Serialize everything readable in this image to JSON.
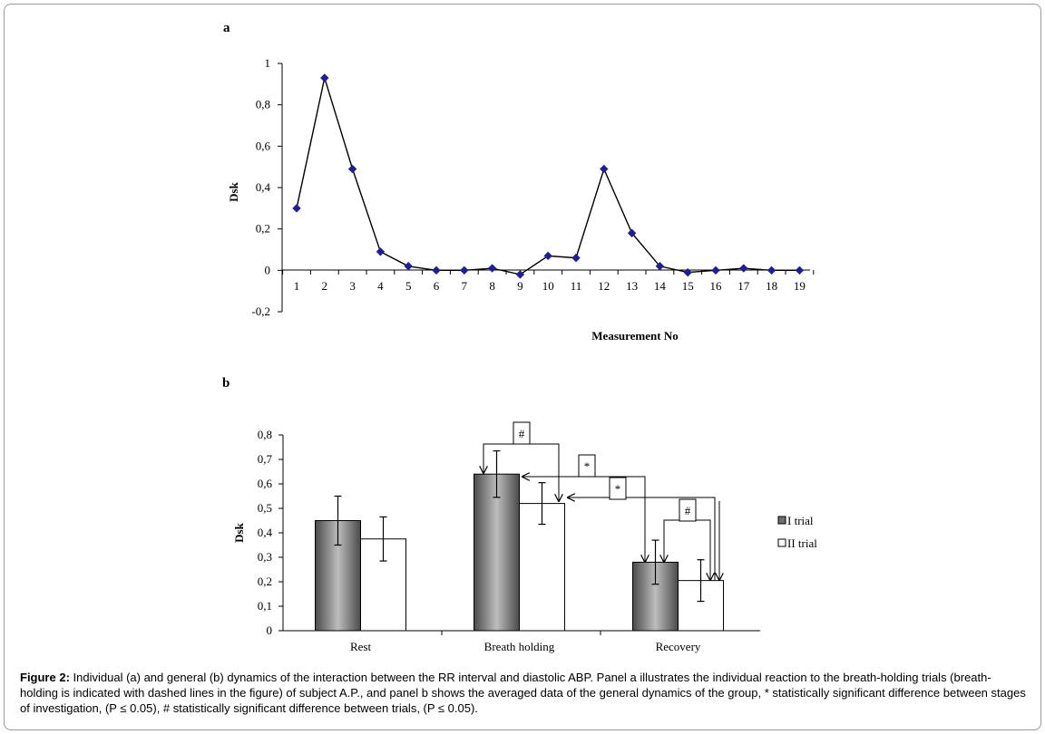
{
  "chart_data": [
    {
      "panel": "a",
      "type": "line",
      "x": [
        1,
        2,
        3,
        4,
        5,
        6,
        7,
        8,
        9,
        10,
        11,
        12,
        13,
        14,
        15,
        16,
        17,
        18,
        19
      ],
      "x_tick_labels": [
        "1",
        "2",
        "3",
        "4",
        "5",
        "6",
        "7",
        "8",
        "9",
        "10",
        "11",
        "12",
        "13",
        "14",
        "15",
        "16",
        "17",
        "18",
        "19"
      ],
      "y": [
        0.3,
        0.93,
        0.49,
        0.09,
        0.02,
        0.0,
        0.0,
        0.01,
        -0.02,
        0.07,
        0.06,
        0.49,
        0.18,
        0.02,
        -0.01,
        0.0,
        0.01,
        0.0,
        0.0
      ],
      "xlabel": "Measurement No",
      "ylabel": "Dsk",
      "ylim": [
        -0.2,
        1
      ],
      "y_ticks": [
        -0.2,
        0,
        0.2,
        0.4,
        0.6,
        0.8,
        1
      ],
      "y_tick_labels": [
        "-0,2",
        "0",
        "0,2",
        "0,4",
        "0,6",
        "0,8",
        "1"
      ],
      "marker": "diamond",
      "marker_color": "#1f1f8f",
      "grid": false
    },
    {
      "panel": "b",
      "type": "bar",
      "categories": [
        "Rest",
        "Breath holding",
        "Recovery"
      ],
      "series": [
        {
          "name": "I trial",
          "values": [
            0.45,
            0.64,
            0.28
          ],
          "errors": [
            0.1,
            0.095,
            0.09
          ],
          "color": "#7a7a7a"
        },
        {
          "name": "II trial",
          "values": [
            0.375,
            0.52,
            0.205
          ],
          "errors": [
            0.09,
            0.085,
            0.085
          ],
          "color": "#ffffff"
        }
      ],
      "ylabel": "Dsk",
      "ylim": [
        0,
        0.8
      ],
      "y_ticks": [
        0,
        0.1,
        0.2,
        0.3,
        0.4,
        0.5,
        0.6,
        0.7,
        0.8
      ],
      "y_tick_labels": [
        "0",
        "0,1",
        "0,2",
        "0,3",
        "0,4",
        "0,5",
        "0,6",
        "0,7",
        "0,8"
      ],
      "annotations": [
        "#",
        "*",
        "*",
        "#"
      ],
      "legend_position": "right",
      "grid": false
    }
  ],
  "panel_labels": {
    "a": "a",
    "b": "b"
  },
  "caption": {
    "label": "Figure 2:",
    "text": "Individual (a) and general (b) dynamics of the interaction between the RR interval and diastolic ABP. Panel a illustrates the individual reaction to the breath-holding trials (breath-holding is indicated with dashed lines in the figure) of subject A.P., and panel b shows the averaged data of the general dynamics of the group, * statistically significant difference between stages of investigation, (P ≤ 0.05), # statistically significant difference between trials, (P ≤ 0.05)."
  }
}
